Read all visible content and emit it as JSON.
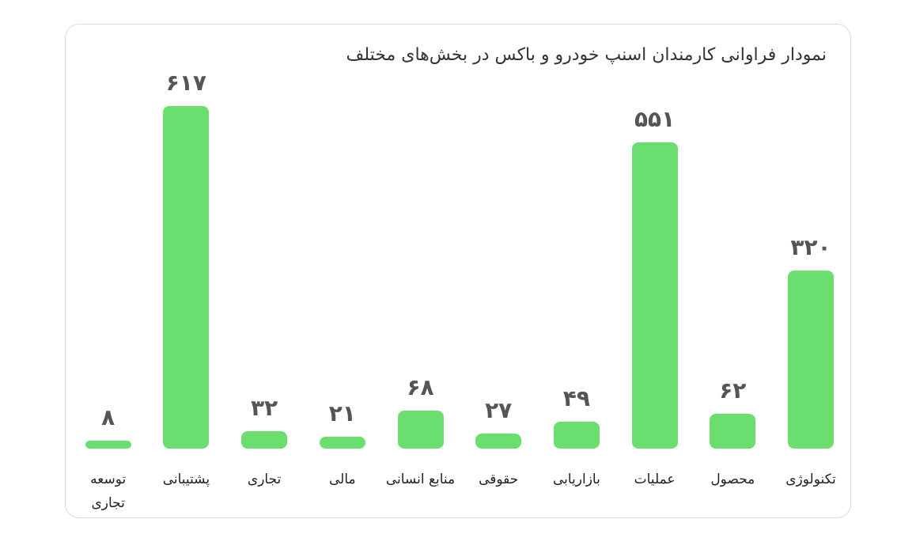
{
  "chart_data": {
    "type": "bar",
    "title": "نمودار فراوانی کارمندان اسنپ خودرو و باکس در بخش‌های مختلف",
    "categories": [
      "تکنولوژی",
      "محصول",
      "عملیات",
      "بازاریابی",
      "حقوقی",
      "منابع انسانی",
      "مالی",
      "تجاری",
      "پشتیبانی",
      "توسعه تجاری"
    ],
    "values": [
      320,
      62,
      551,
      49,
      27,
      68,
      21,
      32,
      617,
      8
    ],
    "value_labels": [
      "۳۲۰",
      "۶۲",
      "۵۵۱",
      "۴۹",
      "۲۷",
      "۶۸",
      "۲۱",
      "۳۲",
      "۶۱۷",
      "۸"
    ],
    "color": "#6ade6f"
  }
}
